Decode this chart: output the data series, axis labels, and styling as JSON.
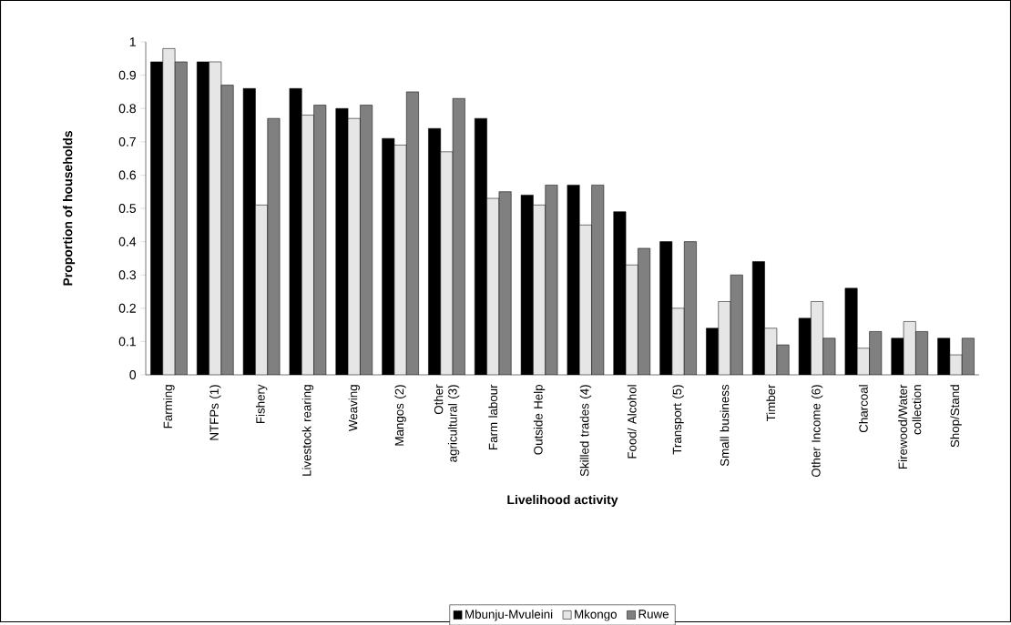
{
  "chart_data": {
    "type": "bar",
    "xlabel": "Livelihood activity",
    "ylabel": "Proportion of households",
    "categories": [
      "Farming",
      "NTFPs (1)",
      "Fishery",
      "Livestock rearing",
      "Weaving",
      "Mangos (2)",
      "Other agricultural (3)",
      "Farm labour",
      "Outside Help",
      "Skilled trades (4)",
      "Food/ Alcohol",
      "Transport (5)",
      "Small business",
      "Timber",
      "Other Income (6)",
      "Charcoal",
      "Firewood/Water collection",
      "Shop/Stand"
    ],
    "series": [
      {
        "name": "Mbunju-Mvuleini",
        "color": "#000000",
        "values": [
          0.94,
          0.94,
          0.86,
          0.86,
          0.8,
          0.71,
          0.74,
          0.77,
          0.54,
          0.57,
          0.49,
          0.4,
          0.14,
          0.34,
          0.17,
          0.26,
          0.11,
          0.11
        ]
      },
      {
        "name": "Mkongo",
        "color": "#e6e6e6",
        "values": [
          0.98,
          0.94,
          0.51,
          0.78,
          0.77,
          0.69,
          0.67,
          0.53,
          0.51,
          0.45,
          0.33,
          0.2,
          0.22,
          0.14,
          0.22,
          0.08,
          0.16,
          0.06
        ]
      },
      {
        "name": "Ruwe",
        "color": "#808080",
        "values": [
          0.94,
          0.87,
          0.77,
          0.81,
          0.81,
          0.85,
          0.83,
          0.55,
          0.57,
          0.57,
          0.38,
          0.4,
          0.3,
          0.09,
          0.11,
          0.13,
          0.13,
          0.11
        ]
      }
    ],
    "ylim": [
      0,
      1
    ],
    "yticks": [
      0,
      0.1,
      0.2,
      0.3,
      0.4,
      0.5,
      0.6,
      0.7,
      0.8,
      0.9,
      1
    ],
    "grid": false,
    "legend": "bottom"
  }
}
